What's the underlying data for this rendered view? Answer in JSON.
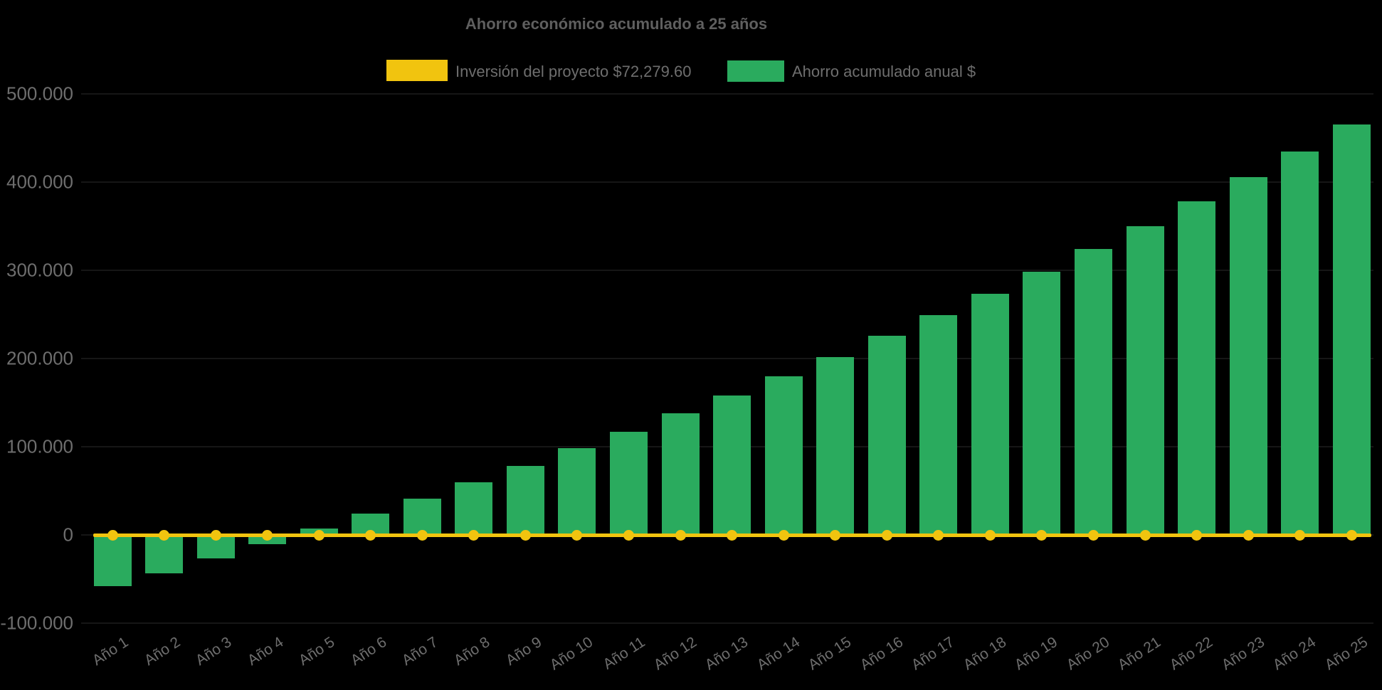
{
  "title": "Ahorro económico acumulado a 25 años",
  "background_color": "#000000",
  "colors": {
    "savings_green": "#2aab5e",
    "investment_yellow": "#f1c40f",
    "text_gray": "#6e6e6e",
    "title_gray": "#5f5f5f",
    "gridline": "#161616"
  },
  "legend": {
    "items": [
      {
        "label": "Inversión del proyecto $72,279.60",
        "color": "#f1c40f",
        "marker": "line-swatch"
      },
      {
        "label": "Ahorro acumulado anual $",
        "color": "#2aab5e",
        "marker": "bar-swatch"
      }
    ]
  },
  "investment_amount_text": "$72,279.60",
  "chart_data": {
    "type": "bar",
    "title": "Ahorro económico acumulado a 25 años",
    "xlabel": "",
    "ylabel": "",
    "grid": "faint horizontal gridlines on black background",
    "legend_position": "top",
    "categories": [
      "Año 1",
      "Año 2",
      "Año 3",
      "Año 4",
      "Año 5",
      "Año 6",
      "Año 7",
      "Año 8",
      "Año 9",
      "Año 10",
      "Año 11",
      "Año 12",
      "Año 13",
      "Año 14",
      "Año 15",
      "Año 16",
      "Año 17",
      "Año 18",
      "Año 19",
      "Año 20",
      "Año 21",
      "Año 22",
      "Año 23",
      "Año 24",
      "Año 25"
    ],
    "series": [
      {
        "name": "Ahorro acumulado anual $",
        "type": "bar",
        "color": "#2aab5e",
        "values": [
          -57500,
          -43000,
          -26000,
          -10000,
          7000,
          24000,
          41000,
          60000,
          78500,
          98000,
          117000,
          138000,
          158000,
          180000,
          202000,
          226000,
          249000,
          273000,
          298000,
          324000,
          350000,
          378000,
          406000,
          435000,
          465000
        ]
      },
      {
        "name": "Inversión del proyecto $72,279.60",
        "type": "line",
        "color": "#f1c40f",
        "marker": "circle",
        "values": [
          0,
          0,
          0,
          0,
          0,
          0,
          0,
          0,
          0,
          0,
          0,
          0,
          0,
          0,
          0,
          0,
          0,
          0,
          0,
          0,
          0,
          0,
          0,
          0,
          0
        ]
      }
    ],
    "y_axis": {
      "tick_values": [
        500000,
        400000,
        300000,
        200000,
        100000,
        0,
        -100000
      ],
      "tick_labels": [
        "500.000",
        "400.000",
        "300.000",
        "200.000",
        "100.000",
        "0",
        "-100.000"
      ],
      "ylim": [
        -120000,
        545000
      ]
    }
  }
}
